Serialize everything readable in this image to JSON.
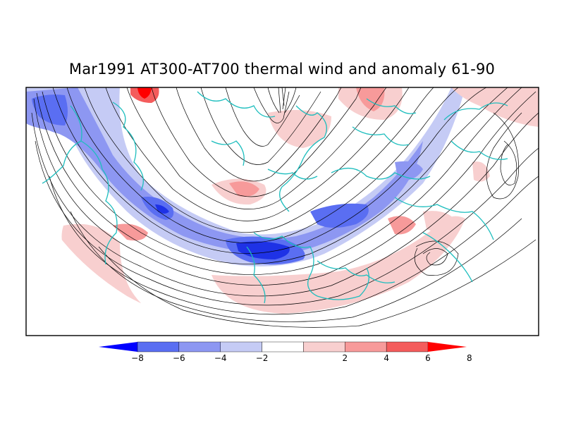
{
  "figure": {
    "title": "Mar1991 AT300-AT700 thermal wind and anomaly 61-90"
  },
  "colorbar": {
    "tick_labels": [
      "-8",
      "-6",
      "-4",
      "-2",
      "2",
      "4",
      "6",
      "8"
    ],
    "levels": [
      {
        "range": "< -8",
        "color": "#0000ff"
      },
      {
        "range": "-8 to -6",
        "color": "#5a6ef2"
      },
      {
        "range": "-6 to -4",
        "color": "#8d97f2"
      },
      {
        "range": "-4 to -2",
        "color": "#c5cbf5"
      },
      {
        "range": "-2 to 2",
        "color": "#ffffff"
      },
      {
        "range": "2 to 4",
        "color": "#f8cfcf"
      },
      {
        "range": "4 to 6",
        "color": "#f79a9a"
      },
      {
        "range": "6 to 8",
        "color": "#f45c5c"
      },
      {
        "range": "> 8",
        "color": "#ff0000"
      }
    ]
  },
  "map": {
    "projection": "polar-stereographic",
    "coastline_color": "#1ebebe",
    "streamline_color": "#000000"
  }
}
